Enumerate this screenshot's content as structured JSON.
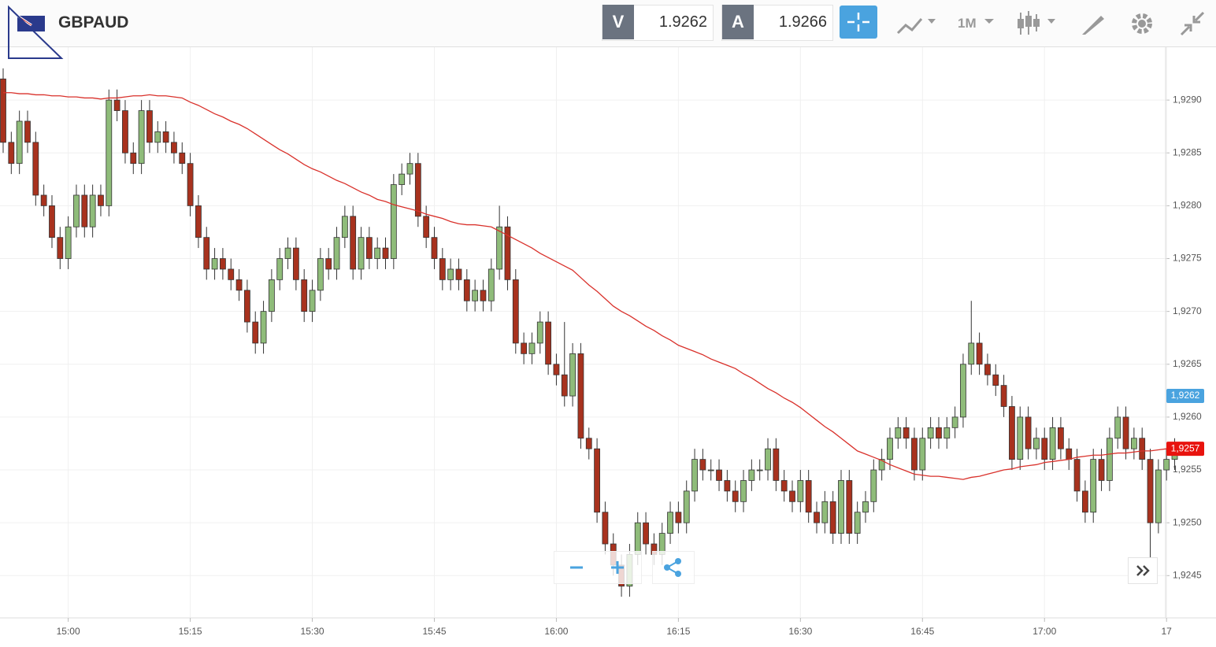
{
  "header": {
    "symbol": "GBPAUD",
    "bid_label": "V",
    "bid": "1.9262",
    "ask_label": "A",
    "ask": "1.9266",
    "timeframe": "1M"
  },
  "chart_data": {
    "type": "candlestick",
    "categories": [
      null,
      null,
      null,
      null,
      null,
      null,
      null,
      null,
      "15:00",
      null,
      null,
      null,
      null,
      null,
      null,
      null,
      null,
      null,
      null,
      null,
      null,
      null,
      null,
      "15:15",
      null,
      null,
      null,
      null,
      null,
      null,
      null,
      null,
      null,
      null,
      null,
      null,
      null,
      null,
      "15:30",
      null,
      null,
      null,
      null,
      null,
      null,
      null,
      null,
      null,
      null,
      null,
      null,
      null,
      null,
      "15:45",
      null,
      null,
      null,
      null,
      null,
      null,
      null,
      null,
      null,
      null,
      null,
      null,
      null,
      null,
      "16:00",
      null,
      null,
      null,
      null,
      null,
      null,
      null,
      null,
      null,
      null,
      null,
      null,
      null,
      null,
      "16:15",
      null,
      null,
      null,
      null,
      null,
      null,
      null,
      null,
      null,
      null,
      null,
      null,
      null,
      null,
      "16:30",
      null,
      null,
      null,
      null,
      null,
      null,
      null,
      null,
      null,
      null,
      null,
      null,
      null,
      null,
      "16:45",
      null,
      null,
      null,
      null,
      null,
      null,
      null,
      null,
      null,
      null,
      null,
      null,
      null,
      null,
      "17:00",
      null,
      null,
      null,
      null,
      null,
      null,
      null,
      null,
      null,
      null,
      null,
      null,
      null,
      null,
      "17",
      null
    ],
    "open": [
      1.9292,
      1.9286,
      1.9284,
      1.9288,
      1.9286,
      1.9281,
      1.928,
      1.9277,
      1.9275,
      1.9278,
      1.9281,
      1.9278,
      1.9281,
      1.928,
      1.929,
      1.9289,
      1.9285,
      1.9284,
      1.9289,
      1.9286,
      1.9287,
      1.9286,
      1.9285,
      1.9284,
      1.928,
      1.9277,
      1.9274,
      1.9275,
      1.9274,
      1.9273,
      1.9272,
      1.9269,
      1.9267,
      1.927,
      1.9273,
      1.9275,
      1.9276,
      1.9273,
      1.927,
      1.9272,
      1.9275,
      1.9274,
      1.9277,
      1.9279,
      1.9274,
      1.9277,
      1.9275,
      1.9276,
      1.9275,
      1.9282,
      1.9283,
      1.9284,
      1.9279,
      1.9277,
      1.9275,
      1.9273,
      1.9274,
      1.9273,
      1.9271,
      1.9272,
      1.9271,
      1.9274,
      1.9278,
      1.9273,
      1.9267,
      1.9266,
      1.9267,
      1.9269,
      1.9265,
      1.9264,
      1.9262,
      1.9266,
      1.9258,
      1.9257,
      1.9251,
      1.9248,
      1.9246,
      1.9244,
      1.9247,
      1.925,
      1.9248,
      1.9247,
      1.9249,
      1.9251,
      1.925,
      1.9253,
      1.9256,
      1.9255,
      1.9255,
      1.9254,
      1.9253,
      1.9252,
      1.9254,
      1.9255,
      1.9255,
      1.9257,
      1.9254,
      1.9253,
      1.9252,
      1.9254,
      1.9251,
      1.925,
      1.9252,
      1.9249,
      1.9254,
      1.9249,
      1.9251,
      1.9252,
      1.9255,
      1.9256,
      1.9258,
      1.9259,
      1.9258,
      1.9255,
      1.9258,
      1.9259,
      1.9258,
      1.9259,
      1.926,
      1.9265,
      1.9267,
      1.9265,
      1.9264,
      1.9263,
      1.9261,
      1.9256,
      1.926,
      1.9257,
      1.9258,
      1.9256,
      1.9259,
      1.9257,
      1.9256,
      1.9253,
      1.9251,
      1.9256,
      1.9254,
      1.9258,
      1.926,
      1.9257,
      1.9258,
      1.9256,
      1.925,
      1.9255,
      1.9256
    ],
    "high": [
      1.9293,
      1.9287,
      1.9289,
      1.9289,
      1.9287,
      1.9282,
      1.9281,
      1.9278,
      1.9279,
      1.9282,
      1.9282,
      1.9282,
      1.9282,
      1.9291,
      1.9291,
      1.929,
      1.9286,
      1.929,
      1.929,
      1.9288,
      1.9288,
      1.9287,
      1.9286,
      1.9285,
      1.9281,
      1.9278,
      1.9276,
      1.9276,
      1.9275,
      1.9274,
      1.9273,
      1.927,
      1.9271,
      1.9274,
      1.9276,
      1.9277,
      1.9277,
      1.9274,
      1.9273,
      1.9276,
      1.9276,
      1.9278,
      1.928,
      1.928,
      1.9278,
      1.9278,
      1.9277,
      1.9277,
      1.9283,
      1.9284,
      1.9285,
      1.9285,
      1.928,
      1.9278,
      1.9276,
      1.9275,
      1.9275,
      1.9274,
      1.9273,
      1.9273,
      1.9275,
      1.928,
      1.9279,
      1.9274,
      1.9268,
      1.9268,
      1.927,
      1.927,
      1.9266,
      1.9269,
      1.9267,
      1.9267,
      1.9259,
      1.9258,
      1.9252,
      1.9249,
      1.9247,
      1.9248,
      1.9251,
      1.9251,
      1.9249,
      1.925,
      1.9252,
      1.9252,
      1.9254,
      1.9257,
      1.9257,
      1.9256,
      1.9256,
      1.9255,
      1.9254,
      1.9255,
      1.9256,
      1.9256,
      1.9258,
      1.9258,
      1.9255,
      1.9254,
      1.9255,
      1.9255,
      1.9252,
      1.9253,
      1.9253,
      1.9255,
      1.9255,
      1.9252,
      1.9253,
      1.9256,
      1.9257,
      1.9259,
      1.926,
      1.926,
      1.9259,
      1.9259,
      1.926,
      1.926,
      1.926,
      1.9261,
      1.9266,
      1.9271,
      1.9268,
      1.9266,
      1.9265,
      1.9264,
      1.9262,
      1.9261,
      1.9261,
      1.9259,
      1.9259,
      1.926,
      1.926,
      1.9258,
      1.9257,
      1.9254,
      1.9257,
      1.9257,
      1.9259,
      1.9261,
      1.9261,
      1.9259,
      1.9259,
      1.9257,
      1.9256,
      1.9257,
      1.9258
    ],
    "low": [
      1.9285,
      1.9283,
      1.9283,
      1.9285,
      1.928,
      1.9279,
      1.9276,
      1.9274,
      1.9274,
      1.9277,
      1.9277,
      1.9277,
      1.9279,
      1.9279,
      1.9288,
      1.9284,
      1.9283,
      1.9283,
      1.9285,
      1.9285,
      1.9285,
      1.9284,
      1.9283,
      1.9279,
      1.9276,
      1.9273,
      1.9273,
      1.9273,
      1.9272,
      1.9271,
      1.9268,
      1.9266,
      1.9266,
      1.9269,
      1.9272,
      1.9274,
      1.9272,
      1.9269,
      1.9269,
      1.9271,
      1.9273,
      1.9273,
      1.9276,
      1.9273,
      1.9273,
      1.9274,
      1.9274,
      1.9274,
      1.9274,
      1.9281,
      1.9282,
      1.9278,
      1.9276,
      1.9274,
      1.9272,
      1.9272,
      1.9272,
      1.927,
      1.927,
      1.927,
      1.927,
      1.9273,
      1.9272,
      1.9266,
      1.9265,
      1.9265,
      1.9266,
      1.9264,
      1.9263,
      1.9261,
      1.9261,
      1.9257,
      1.9256,
      1.925,
      1.9247,
      1.9245,
      1.9243,
      1.9243,
      1.9246,
      1.9247,
      1.9246,
      1.9246,
      1.9248,
      1.9249,
      1.9249,
      1.9252,
      1.9254,
      1.9254,
      1.9253,
      1.9252,
      1.9251,
      1.9251,
      1.9253,
      1.9254,
      1.9254,
      1.9253,
      1.9252,
      1.9251,
      1.9251,
      1.925,
      1.9249,
      1.9249,
      1.9248,
      1.9248,
      1.9248,
      1.9248,
      1.925,
      1.9251,
      1.9254,
      1.9255,
      1.9257,
      1.9257,
      1.9254,
      1.9254,
      1.9257,
      1.9257,
      1.9257,
      1.9258,
      1.9259,
      1.9264,
      1.9264,
      1.9263,
      1.9262,
      1.926,
      1.9255,
      1.9255,
      1.9256,
      1.9256,
      1.9255,
      1.9255,
      1.9256,
      1.9255,
      1.9252,
      1.925,
      1.925,
      1.9253,
      1.9253,
      1.9257,
      1.9256,
      1.9256,
      1.9255,
      1.9246,
      1.9249,
      1.9254,
      1.9255
    ],
    "close": [
      1.9286,
      1.9284,
      1.9288,
      1.9286,
      1.9281,
      1.928,
      1.9277,
      1.9275,
      1.9278,
      1.9281,
      1.9278,
      1.9281,
      1.928,
      1.929,
      1.9289,
      1.9285,
      1.9284,
      1.9289,
      1.9286,
      1.9287,
      1.9286,
      1.9285,
      1.9284,
      1.928,
      1.9277,
      1.9274,
      1.9275,
      1.9274,
      1.9273,
      1.9272,
      1.9269,
      1.9267,
      1.927,
      1.9273,
      1.9275,
      1.9276,
      1.9273,
      1.927,
      1.9272,
      1.9275,
      1.9274,
      1.9277,
      1.9279,
      1.9274,
      1.9277,
      1.9275,
      1.9276,
      1.9275,
      1.9282,
      1.9283,
      1.9284,
      1.9279,
      1.9277,
      1.9275,
      1.9273,
      1.9274,
      1.9273,
      1.9271,
      1.9272,
      1.9271,
      1.9274,
      1.9278,
      1.9273,
      1.9267,
      1.9266,
      1.9267,
      1.9269,
      1.9265,
      1.9264,
      1.9262,
      1.9266,
      1.9258,
      1.9257,
      1.9251,
      1.9248,
      1.9246,
      1.9244,
      1.9247,
      1.925,
      1.9248,
      1.9247,
      1.9249,
      1.9251,
      1.925,
      1.9253,
      1.9256,
      1.9255,
      1.9255,
      1.9254,
      1.9253,
      1.9252,
      1.9254,
      1.9255,
      1.9255,
      1.9257,
      1.9254,
      1.9253,
      1.9252,
      1.9254,
      1.9251,
      1.925,
      1.9252,
      1.9249,
      1.9254,
      1.9249,
      1.9251,
      1.9252,
      1.9255,
      1.9256,
      1.9258,
      1.9259,
      1.9258,
      1.9255,
      1.9258,
      1.9259,
      1.9258,
      1.9259,
      1.926,
      1.9265,
      1.9267,
      1.9265,
      1.9264,
      1.9263,
      1.9261,
      1.9256,
      1.926,
      1.9257,
      1.9258,
      1.9256,
      1.9259,
      1.9257,
      1.9256,
      1.9253,
      1.9251,
      1.9256,
      1.9254,
      1.9258,
      1.926,
      1.9257,
      1.9258,
      1.9256,
      1.925,
      1.9255,
      1.9256,
      1.9257
    ],
    "up_color": "#8fbc7a",
    "down_color": "#a8321e",
    "ma": {
      "color": "#d9312b",
      "values": [
        1.92907,
        1.92907,
        1.92906,
        1.92906,
        1.92905,
        1.92905,
        1.92904,
        1.92904,
        1.92903,
        1.92903,
        1.92902,
        1.92902,
        1.92901,
        1.92902,
        1.92902,
        1.92903,
        1.92904,
        1.92904,
        1.92905,
        1.92904,
        1.92904,
        1.92903,
        1.92902,
        1.92898,
        1.92895,
        1.92891,
        1.92887,
        1.92884,
        1.9288,
        1.92877,
        1.92873,
        1.92868,
        1.92863,
        1.92858,
        1.92853,
        1.92849,
        1.92844,
        1.92839,
        1.92835,
        1.92832,
        1.92828,
        1.92824,
        1.92821,
        1.92817,
        1.92813,
        1.9281,
        1.92806,
        1.92804,
        1.92801,
        1.92799,
        1.92797,
        1.92795,
        1.92792,
        1.9279,
        1.92788,
        1.92785,
        1.92783,
        1.92782,
        1.92782,
        1.92781,
        1.9278,
        1.92776,
        1.92772,
        1.92768,
        1.92764,
        1.9276,
        1.92755,
        1.92751,
        1.92747,
        1.92743,
        1.92739,
        1.92732,
        1.92725,
        1.92719,
        1.92712,
        1.92705,
        1.927,
        1.92696,
        1.92691,
        1.92686,
        1.92682,
        1.92677,
        1.92673,
        1.92668,
        1.92665,
        1.92662,
        1.92659,
        1.92655,
        1.92652,
        1.92649,
        1.92646,
        1.92641,
        1.92637,
        1.92632,
        1.92627,
        1.92623,
        1.92618,
        1.92614,
        1.92609,
        1.92603,
        1.92597,
        1.92591,
        1.92586,
        1.9258,
        1.92574,
        1.92568,
        1.92565,
        1.92562,
        1.92559,
        1.92555,
        1.92552,
        1.92549,
        1.92546,
        1.92545,
        1.92544,
        1.92544,
        1.92543,
        1.92542,
        1.92541,
        1.92543,
        1.92544,
        1.92546,
        1.92548,
        1.9255,
        1.92551,
        1.92553,
        1.92554,
        1.92555,
        1.92557,
        1.92558,
        1.92559,
        1.9256,
        1.92562,
        1.92563,
        1.92564,
        1.92564,
        1.92565,
        1.92566,
        1.92566,
        1.92567,
        1.92568,
        1.92568,
        1.92569,
        1.9257,
        1.9257
      ]
    },
    "ylim": [
      1.9241,
      1.9295
    ],
    "yticks": [
      {
        "value": 1.9245,
        "label": "1,9245"
      },
      {
        "value": 1.925,
        "label": "1,9250"
      },
      {
        "value": 1.9255,
        "label": "1,9255"
      },
      {
        "value": 1.926,
        "label": "1,9260"
      },
      {
        "value": 1.9265,
        "label": "1,9265"
      },
      {
        "value": 1.927,
        "label": "1,9270"
      },
      {
        "value": 1.9275,
        "label": "1,9275"
      },
      {
        "value": 1.928,
        "label": "1,9280"
      },
      {
        "value": 1.9285,
        "label": "1,9285"
      },
      {
        "value": 1.929,
        "label": "1,9290"
      }
    ],
    "grid": true,
    "bid_tag": {
      "value": 1.9262,
      "label": "1,9262",
      "color": "#4aa3df"
    },
    "last_tag": {
      "value": 1.9257,
      "label": "1,9257",
      "color": "#e8130e"
    }
  }
}
